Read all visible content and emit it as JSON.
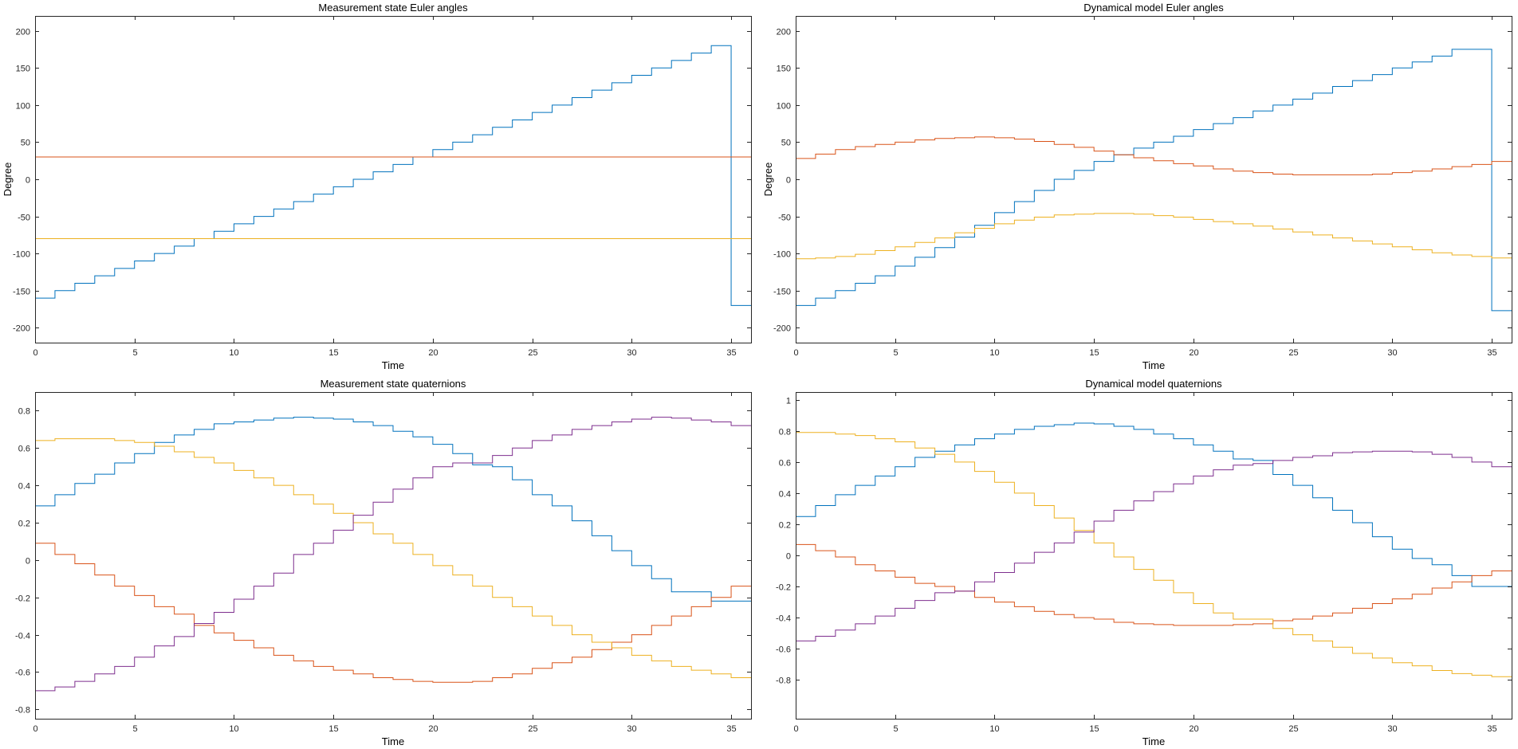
{
  "colors": {
    "s1": "#0072BD",
    "s2": "#D95319",
    "s3": "#EDB120",
    "s4": "#7E2F8E"
  },
  "chart_data": [
    {
      "type": "line",
      "title": "Measurement state Euler angles",
      "xlabel": "Time",
      "ylabel": "Degree",
      "xlim": [
        0,
        36
      ],
      "ylim": [
        -220,
        220
      ],
      "xticks": [
        0,
        5,
        10,
        15,
        20,
        25,
        30,
        35
      ],
      "xtick_labels": [
        "0",
        "5",
        "10",
        "15",
        "20",
        "25",
        "30",
        "35"
      ],
      "yticks": [
        -200,
        -150,
        -100,
        -50,
        0,
        50,
        100,
        150,
        200
      ],
      "ytick_labels": [
        "-200",
        "-150",
        "-100",
        "-50",
        "0",
        "50",
        "100",
        "150",
        "200"
      ],
      "step": true,
      "x": [
        0,
        1,
        2,
        3,
        4,
        5,
        6,
        7,
        8,
        9,
        10,
        11,
        12,
        13,
        14,
        15,
        16,
        17,
        18,
        19,
        20,
        21,
        22,
        23,
        24,
        25,
        26,
        27,
        28,
        29,
        30,
        31,
        32,
        33,
        34,
        35,
        36
      ],
      "series": [
        {
          "color": "#0072BD",
          "values": [
            -160,
            -150,
            -140,
            -130,
            -120,
            -110,
            -100,
            -90,
            -80,
            -70,
            -60,
            -50,
            -40,
            -30,
            -20,
            -10,
            0,
            10,
            20,
            30,
            40,
            50,
            60,
            70,
            80,
            90,
            100,
            110,
            120,
            130,
            140,
            150,
            160,
            170,
            180,
            -170,
            -170
          ]
        },
        {
          "color": "#D95319",
          "values": [
            30,
            30,
            30,
            30,
            30,
            30,
            30,
            30,
            30,
            30,
            30,
            30,
            30,
            30,
            30,
            30,
            30,
            30,
            30,
            30,
            30,
            30,
            30,
            30,
            30,
            30,
            30,
            30,
            30,
            30,
            30,
            30,
            30,
            30,
            30,
            30,
            30
          ]
        },
        {
          "color": "#EDB120",
          "values": [
            -80,
            -80,
            -80,
            -80,
            -80,
            -80,
            -80,
            -80,
            -80,
            -80,
            -80,
            -80,
            -80,
            -80,
            -80,
            -80,
            -80,
            -80,
            -80,
            -80,
            -80,
            -80,
            -80,
            -80,
            -80,
            -80,
            -80,
            -80,
            -80,
            -80,
            -80,
            -80,
            -80,
            -80,
            -80,
            -80,
            -80
          ]
        }
      ]
    },
    {
      "type": "line",
      "title": "Dynamical model Euler angles",
      "xlabel": "Time",
      "ylabel": "Degree",
      "xlim": [
        0,
        36
      ],
      "ylim": [
        -220,
        220
      ],
      "xticks": [
        0,
        5,
        10,
        15,
        20,
        25,
        30,
        35
      ],
      "xtick_labels": [
        "0",
        "5",
        "10",
        "15",
        "20",
        "25",
        "30",
        "35"
      ],
      "yticks": [
        -200,
        -150,
        -100,
        -50,
        0,
        50,
        100,
        150,
        200
      ],
      "ytick_labels": [
        "-200",
        "-150",
        "-100",
        "-50",
        "0",
        "50",
        "100",
        "150",
        "200"
      ],
      "step": true,
      "x": [
        0,
        1,
        2,
        3,
        4,
        5,
        6,
        7,
        8,
        9,
        10,
        11,
        12,
        13,
        14,
        15,
        16,
        17,
        18,
        19,
        20,
        21,
        22,
        23,
        24,
        25,
        26,
        27,
        28,
        29,
        30,
        31,
        32,
        33,
        34,
        35,
        36
      ],
      "series": [
        {
          "color": "#0072BD",
          "values": [
            -170,
            -160,
            -150,
            -140,
            -130,
            -117,
            -105,
            -92,
            -78,
            -62,
            -45,
            -30,
            -15,
            0,
            12,
            24,
            33,
            42,
            50,
            58,
            67,
            75,
            83,
            92,
            100,
            108,
            116,
            125,
            133,
            141,
            150,
            158,
            166,
            175,
            175,
            -177,
            -177
          ]
        },
        {
          "color": "#D95319",
          "values": [
            28,
            34,
            40,
            44,
            47,
            50,
            53,
            55,
            56,
            57,
            56,
            54,
            51,
            47,
            43,
            38,
            33,
            29,
            25,
            21,
            18,
            14,
            11,
            9,
            7,
            6,
            6,
            6,
            6,
            7,
            9,
            11,
            14,
            17,
            20,
            24,
            24
          ]
        },
        {
          "color": "#EDB120",
          "values": [
            -107,
            -106,
            -104,
            -101,
            -96,
            -91,
            -85,
            -79,
            -72,
            -66,
            -60,
            -55,
            -51,
            -48,
            -47,
            -46,
            -46,
            -47,
            -49,
            -51,
            -54,
            -57,
            -60,
            -63,
            -67,
            -71,
            -75,
            -79,
            -83,
            -87,
            -91,
            -95,
            -99,
            -102,
            -104,
            -106,
            -106
          ]
        }
      ]
    },
    {
      "type": "line",
      "title": "Measurement state quaternions",
      "xlabel": "Time",
      "ylabel": "",
      "xlim": [
        0,
        36
      ],
      "ylim": [
        -0.85,
        0.9
      ],
      "xticks": [
        0,
        5,
        10,
        15,
        20,
        25,
        30,
        35
      ],
      "xtick_labels": [
        "0",
        "5",
        "10",
        "15",
        "20",
        "25",
        "30",
        "35"
      ],
      "yticks": [
        -0.8,
        -0.6,
        -0.4,
        -0.2,
        0,
        0.2,
        0.4,
        0.6,
        0.8
      ],
      "ytick_labels": [
        "-0.8",
        "-0.6",
        "-0.4",
        "-0.2",
        "0",
        "0.2",
        "0.4",
        "0.6",
        "0.8"
      ],
      "step": true,
      "x": [
        0,
        1,
        2,
        3,
        4,
        5,
        6,
        7,
        8,
        9,
        10,
        11,
        12,
        13,
        14,
        15,
        16,
        17,
        18,
        19,
        20,
        21,
        22,
        23,
        24,
        25,
        26,
        27,
        28,
        29,
        30,
        31,
        32,
        33,
        34,
        35,
        36
      ],
      "series": [
        {
          "color": "#0072BD",
          "values": [
            0.29,
            0.35,
            0.41,
            0.46,
            0.52,
            0.57,
            0.63,
            0.67,
            0.7,
            0.73,
            0.74,
            0.75,
            0.76,
            0.765,
            0.76,
            0.755,
            0.74,
            0.72,
            0.69,
            0.66,
            0.62,
            0.57,
            0.51,
            0.5,
            0.43,
            0.35,
            0.29,
            0.21,
            0.13,
            0.05,
            -0.03,
            -0.1,
            -0.17,
            -0.17,
            -0.22,
            -0.22,
            -0.22
          ]
        },
        {
          "color": "#D95319",
          "values": [
            0.09,
            0.03,
            -0.02,
            -0.08,
            -0.14,
            -0.19,
            -0.25,
            -0.29,
            -0.35,
            -0.39,
            -0.43,
            -0.47,
            -0.51,
            -0.54,
            -0.57,
            -0.59,
            -0.61,
            -0.63,
            -0.64,
            -0.65,
            -0.655,
            -0.655,
            -0.65,
            -0.63,
            -0.61,
            -0.58,
            -0.55,
            -0.52,
            -0.48,
            -0.44,
            -0.4,
            -0.35,
            -0.3,
            -0.25,
            -0.2,
            -0.14,
            -0.14
          ]
        },
        {
          "color": "#EDB120",
          "values": [
            0.64,
            0.65,
            0.65,
            0.65,
            0.64,
            0.63,
            0.61,
            0.58,
            0.55,
            0.52,
            0.48,
            0.44,
            0.4,
            0.35,
            0.3,
            0.25,
            0.2,
            0.14,
            0.09,
            0.03,
            -0.03,
            -0.08,
            -0.14,
            -0.2,
            -0.25,
            -0.3,
            -0.35,
            -0.4,
            -0.44,
            -0.47,
            -0.51,
            -0.54,
            -0.57,
            -0.59,
            -0.61,
            -0.63,
            -0.63
          ]
        },
        {
          "color": "#7E2F8E",
          "values": [
            -0.7,
            -0.68,
            -0.65,
            -0.61,
            -0.57,
            -0.52,
            -0.46,
            -0.41,
            -0.34,
            -0.28,
            -0.21,
            -0.14,
            -0.07,
            0.03,
            0.09,
            0.16,
            0.24,
            0.31,
            0.38,
            0.44,
            0.5,
            0.52,
            0.52,
            0.56,
            0.6,
            0.64,
            0.67,
            0.7,
            0.72,
            0.74,
            0.755,
            0.765,
            0.76,
            0.75,
            0.74,
            0.72,
            0.72
          ]
        }
      ]
    },
    {
      "type": "line",
      "title": "Dynamical model quaternions",
      "xlabel": "Time",
      "ylabel": "",
      "xlim": [
        0,
        36
      ],
      "ylim": [
        -1.05,
        1.05
      ],
      "xticks": [
        0,
        5,
        10,
        15,
        20,
        25,
        30,
        35
      ],
      "xtick_labels": [
        "0",
        "5",
        "10",
        "15",
        "20",
        "25",
        "30",
        "35"
      ],
      "yticks": [
        -0.8,
        -0.6,
        -0.4,
        -0.2,
        0,
        0.2,
        0.4,
        0.6,
        0.8,
        1
      ],
      "ytick_labels": [
        "-0.8",
        "-0.6",
        "-0.4",
        "-0.2",
        "0",
        "0.2",
        "0.4",
        "0.6",
        "0.8",
        "1"
      ],
      "step": true,
      "x": [
        0,
        1,
        2,
        3,
        4,
        5,
        6,
        7,
        8,
        9,
        10,
        11,
        12,
        13,
        14,
        15,
        16,
        17,
        18,
        19,
        20,
        21,
        22,
        23,
        24,
        25,
        26,
        27,
        28,
        29,
        30,
        31,
        32,
        33,
        34,
        35,
        36
      ],
      "series": [
        {
          "color": "#0072BD",
          "values": [
            0.25,
            0.32,
            0.39,
            0.45,
            0.51,
            0.57,
            0.63,
            0.67,
            0.71,
            0.75,
            0.78,
            0.81,
            0.83,
            0.84,
            0.85,
            0.845,
            0.83,
            0.81,
            0.78,
            0.75,
            0.71,
            0.67,
            0.62,
            0.61,
            0.52,
            0.45,
            0.37,
            0.29,
            0.21,
            0.12,
            0.04,
            -0.02,
            -0.06,
            -0.13,
            -0.2,
            -0.2,
            -0.2
          ]
        },
        {
          "color": "#D95319",
          "values": [
            0.07,
            0.03,
            -0.01,
            -0.06,
            -0.1,
            -0.14,
            -0.18,
            -0.2,
            -0.23,
            -0.27,
            -0.3,
            -0.33,
            -0.36,
            -0.38,
            -0.4,
            -0.41,
            -0.43,
            -0.44,
            -0.445,
            -0.45,
            -0.45,
            -0.45,
            -0.445,
            -0.44,
            -0.42,
            -0.41,
            -0.39,
            -0.37,
            -0.34,
            -0.31,
            -0.28,
            -0.25,
            -0.21,
            -0.17,
            -0.13,
            -0.1,
            -0.1
          ]
        },
        {
          "color": "#EDB120",
          "values": [
            0.79,
            0.79,
            0.78,
            0.77,
            0.75,
            0.73,
            0.69,
            0.65,
            0.6,
            0.54,
            0.47,
            0.4,
            0.32,
            0.24,
            0.16,
            0.08,
            -0.01,
            -0.09,
            -0.16,
            -0.24,
            -0.31,
            -0.37,
            -0.41,
            -0.41,
            -0.47,
            -0.51,
            -0.55,
            -0.59,
            -0.63,
            -0.66,
            -0.69,
            -0.71,
            -0.74,
            -0.76,
            -0.77,
            -0.78,
            -0.78
          ]
        },
        {
          "color": "#7E2F8E",
          "values": [
            -0.55,
            -0.52,
            -0.48,
            -0.44,
            -0.39,
            -0.34,
            -0.29,
            -0.24,
            -0.23,
            -0.17,
            -0.11,
            -0.05,
            0.02,
            0.08,
            0.15,
            0.22,
            0.29,
            0.35,
            0.41,
            0.46,
            0.51,
            0.55,
            0.58,
            0.59,
            0.61,
            0.63,
            0.64,
            0.66,
            0.665,
            0.67,
            0.67,
            0.665,
            0.65,
            0.63,
            0.6,
            0.57,
            0.57
          ]
        }
      ]
    }
  ]
}
